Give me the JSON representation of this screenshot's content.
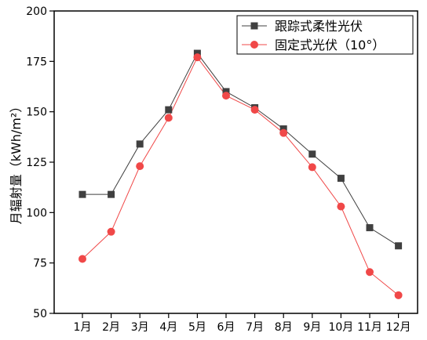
{
  "chart_data": {
    "type": "line",
    "categories": [
      "1月",
      "2月",
      "3月",
      "4月",
      "5月",
      "6月",
      "7月",
      "8月",
      "9月",
      "10月",
      "11月",
      "12月"
    ],
    "ylabel": "月辐射量（kWh/m²）",
    "ylim": [
      50,
      200
    ],
    "yticks": [
      50,
      75,
      100,
      125,
      150,
      175,
      200
    ],
    "grid": false,
    "legend_position": "top-right",
    "series": [
      {
        "name": "跟踪式柔性光伏",
        "marker": "square",
        "color": "#404040",
        "values": [
          109,
          109,
          134,
          151,
          179,
          160,
          152,
          141.5,
          129,
          117,
          92.5,
          83.5
        ]
      },
      {
        "name": "固定式光伏（10°）",
        "marker": "circle",
        "color": "#f04848",
        "values": [
          77,
          90.5,
          123,
          147,
          177,
          158,
          151,
          139.5,
          122.5,
          103,
          70.5,
          59
        ]
      }
    ]
  }
}
